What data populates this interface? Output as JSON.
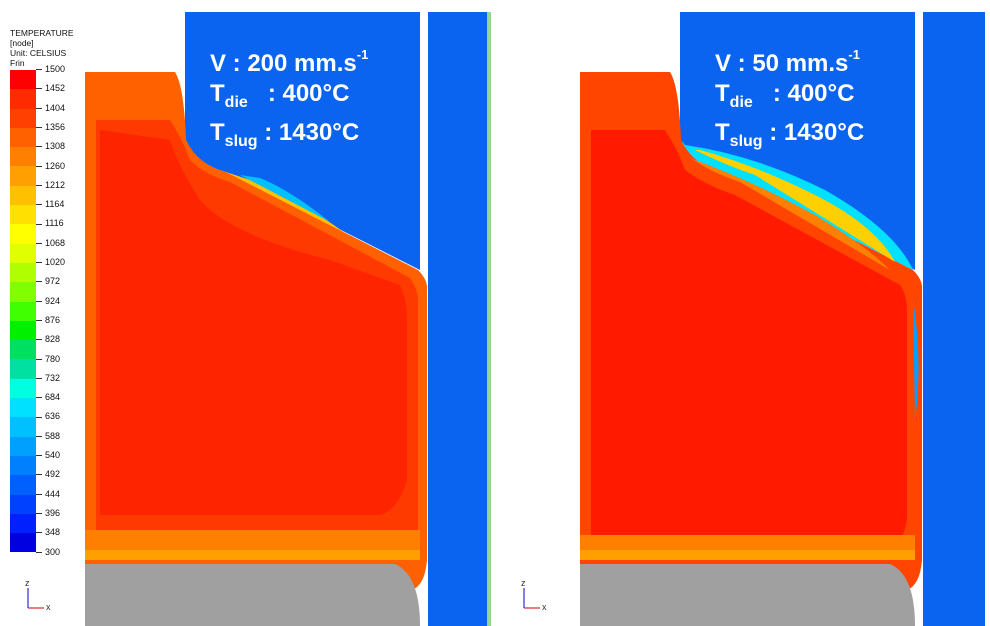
{
  "legend": {
    "title_line1": "TEMPERATURE [node]",
    "title_line2": "Unit: CELSIUS",
    "title_line3": "Frin",
    "ticks": [
      "1500",
      "1452",
      "1404",
      "1356",
      "1308",
      "1260",
      "1212",
      "1164",
      "1116",
      "1068",
      "1020",
      "972",
      "924",
      "876",
      "828",
      "780",
      "732",
      "684",
      "636",
      "588",
      "540",
      "492",
      "444",
      "396",
      "348",
      "300"
    ],
    "colors": [
      "#ff0000",
      "#ff2a00",
      "#ff4000",
      "#ff6000",
      "#ff8000",
      "#ffa000",
      "#ffc000",
      "#ffe000",
      "#ffff00",
      "#e0ff00",
      "#b0ff00",
      "#80ff00",
      "#40ff00",
      "#00f000",
      "#00e060",
      "#00e0a0",
      "#00ffe0",
      "#00e0ff",
      "#00c0ff",
      "#00a0ff",
      "#0080ff",
      "#0060ff",
      "#0040ff",
      "#0020ff",
      "#0000e0"
    ]
  },
  "left_panel": {
    "velocity_value": "V : 200 mm.s",
    "velocity_exp": "-1",
    "tdie_symbol": "T",
    "tdie_sub": "die",
    "tdie_value": ": 400°C",
    "tslug_symbol": "T",
    "tslug_sub": "slug",
    "tslug_value": ": 1430°C"
  },
  "right_panel": {
    "velocity_value": "V : 50 mm.s",
    "velocity_exp": "-1",
    "tdie_symbol": "T",
    "tdie_sub": "die",
    "tdie_value": ": 400°C",
    "tslug_symbol": "T",
    "tslug_sub": "slug",
    "tslug_value": ": 1430°C"
  },
  "axes": {
    "z_label": "z",
    "x_label": "x"
  },
  "colors": {
    "die_blue": "#0a64f0",
    "punch_gray": "#a0a0a0",
    "hot_red": "#ff1a00",
    "hot_orange": "#ff5a00",
    "warm_orange": "#ff8000"
  }
}
